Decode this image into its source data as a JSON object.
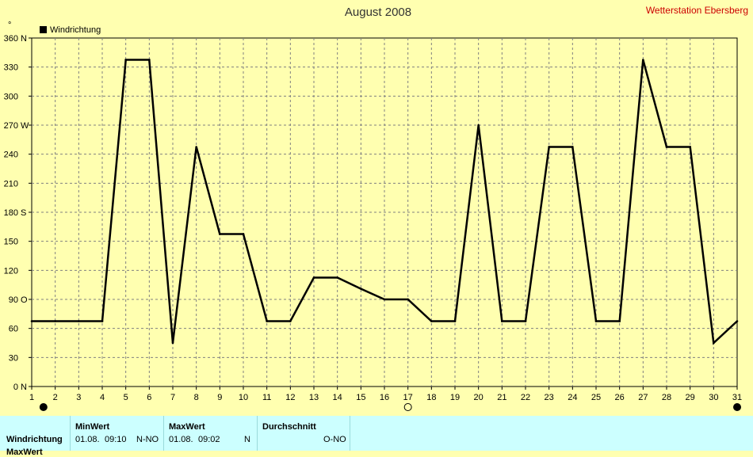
{
  "header": {
    "title": "August 2008",
    "station": "Wetterstation Ebersberg",
    "unit_mark": "°"
  },
  "legend": {
    "label": "Windrichtung",
    "color": "#000000"
  },
  "chart_data": {
    "type": "line",
    "title": "August 2008",
    "series": [
      {
        "name": "Windrichtung",
        "color": "#000000",
        "x": [
          1,
          2,
          3,
          4,
          5,
          6,
          7,
          8,
          9,
          10,
          11,
          12,
          13,
          14,
          15,
          16,
          17,
          18,
          19,
          20,
          21,
          22,
          23,
          24,
          25,
          26,
          27,
          28,
          29,
          30,
          31
        ],
        "values": [
          67.5,
          67.5,
          67.5,
          67.5,
          337.5,
          337.5,
          45,
          247.5,
          157.5,
          157.5,
          67.5,
          67.5,
          112.5,
          112.5,
          101,
          90,
          90,
          67.5,
          67.5,
          270,
          67.5,
          67.5,
          247.5,
          247.5,
          67.5,
          67.5,
          337.5,
          247.5,
          247.5,
          45,
          67.5
        ]
      }
    ],
    "xlim": [
      1,
      31
    ],
    "ylim": [
      0,
      360
    ],
    "x_ticks": [
      "1",
      "2",
      "3",
      "4",
      "5",
      "6",
      "7",
      "8",
      "9",
      "10",
      "11",
      "12",
      "13",
      "14",
      "15",
      "16",
      "17",
      "18",
      "19",
      "20",
      "21",
      "22",
      "23",
      "24",
      "25",
      "26",
      "27",
      "28",
      "29",
      "30",
      "31"
    ],
    "y_ticks": [
      {
        "value": 0,
        "label": "0"
      },
      {
        "value": 30,
        "label": "30"
      },
      {
        "value": 60,
        "label": "60"
      },
      {
        "value": 90,
        "label": "90"
      },
      {
        "value": 120,
        "label": "120"
      },
      {
        "value": 150,
        "label": "150"
      },
      {
        "value": 180,
        "label": "180"
      },
      {
        "value": 210,
        "label": "210"
      },
      {
        "value": 240,
        "label": "240"
      },
      {
        "value": 270,
        "label": "270"
      },
      {
        "value": 300,
        "label": "300"
      },
      {
        "value": 330,
        "label": "330"
      },
      {
        "value": 360,
        "label": "360"
      }
    ],
    "compass_labels": [
      {
        "value": 0,
        "label": "N"
      },
      {
        "value": 90,
        "label": "O"
      },
      {
        "value": 180,
        "label": "S"
      },
      {
        "value": 270,
        "label": "W"
      },
      {
        "value": 360,
        "label": "N"
      }
    ],
    "grid": true,
    "legend_position": "top-left",
    "moon_markers": [
      {
        "x": 1.5,
        "phase": "new"
      },
      {
        "x": 17,
        "phase": "full"
      },
      {
        "x": 31,
        "phase": "new"
      }
    ]
  },
  "table": {
    "columns": {
      "min": "MinWert",
      "max": "MaxWert",
      "avg": "Durchschnitt"
    },
    "rows": [
      {
        "label": "Windrichtung",
        "min_date": "01.08.",
        "min_time": "09:10",
        "min_value": "N-NO",
        "max_date": "01.08.",
        "max_time": "09:02",
        "max_value": "N",
        "avg_value": "O-NO"
      }
    ],
    "next_row_label": "MaxWert"
  }
}
